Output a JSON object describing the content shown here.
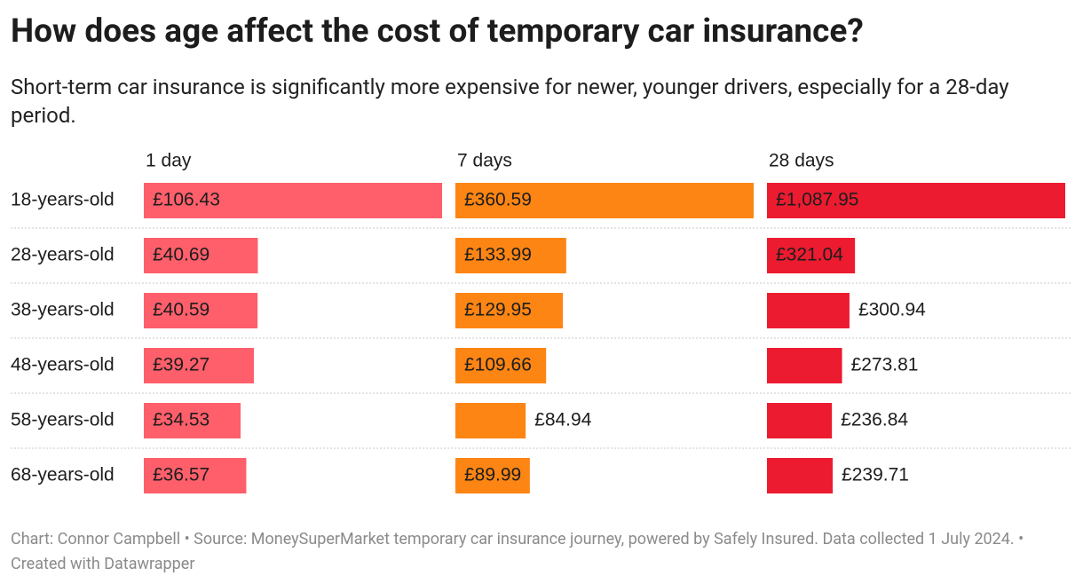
{
  "chart_data": {
    "type": "bar",
    "title": "How does age affect the cost of temporary car insurance?",
    "subtitle": "Short-term car insurance is significantly more expensive for newer, younger drivers, especially for a 28-day period.",
    "caption": "Chart: Connor Campbell • Source: MoneySuperMarket temporary car insurance journey, powered by Safely Insured. Data collected 1 July 2024. • Created with Datawrapper",
    "categories": [
      "18-years-old",
      "28-years-old",
      "38-years-old",
      "48-years-old",
      "58-years-old",
      "68-years-old"
    ],
    "series": [
      {
        "name": "1 day",
        "color": "#fe5f6b",
        "values": [
          106.43,
          40.69,
          40.59,
          39.27,
          34.53,
          36.57
        ],
        "value_labels": [
          "£106.43",
          "£40.69",
          "£40.59",
          "£39.27",
          "£34.53",
          "£36.57"
        ]
      },
      {
        "name": "7 days",
        "color": "#fd8514",
        "values": [
          360.59,
          133.99,
          129.95,
          109.66,
          84.94,
          89.99
        ],
        "value_labels": [
          "£360.59",
          "£133.99",
          "£129.95",
          "£109.66",
          "£84.94",
          "£89.99"
        ]
      },
      {
        "name": "28 days",
        "color": "#ec1b30",
        "values": [
          1087.95,
          321.04,
          300.94,
          273.81,
          236.84,
          239.71
        ],
        "value_labels": [
          "£1,087.95",
          "£321.04",
          "£300.94",
          "£273.81",
          "£236.84",
          "£239.71"
        ]
      }
    ]
  }
}
